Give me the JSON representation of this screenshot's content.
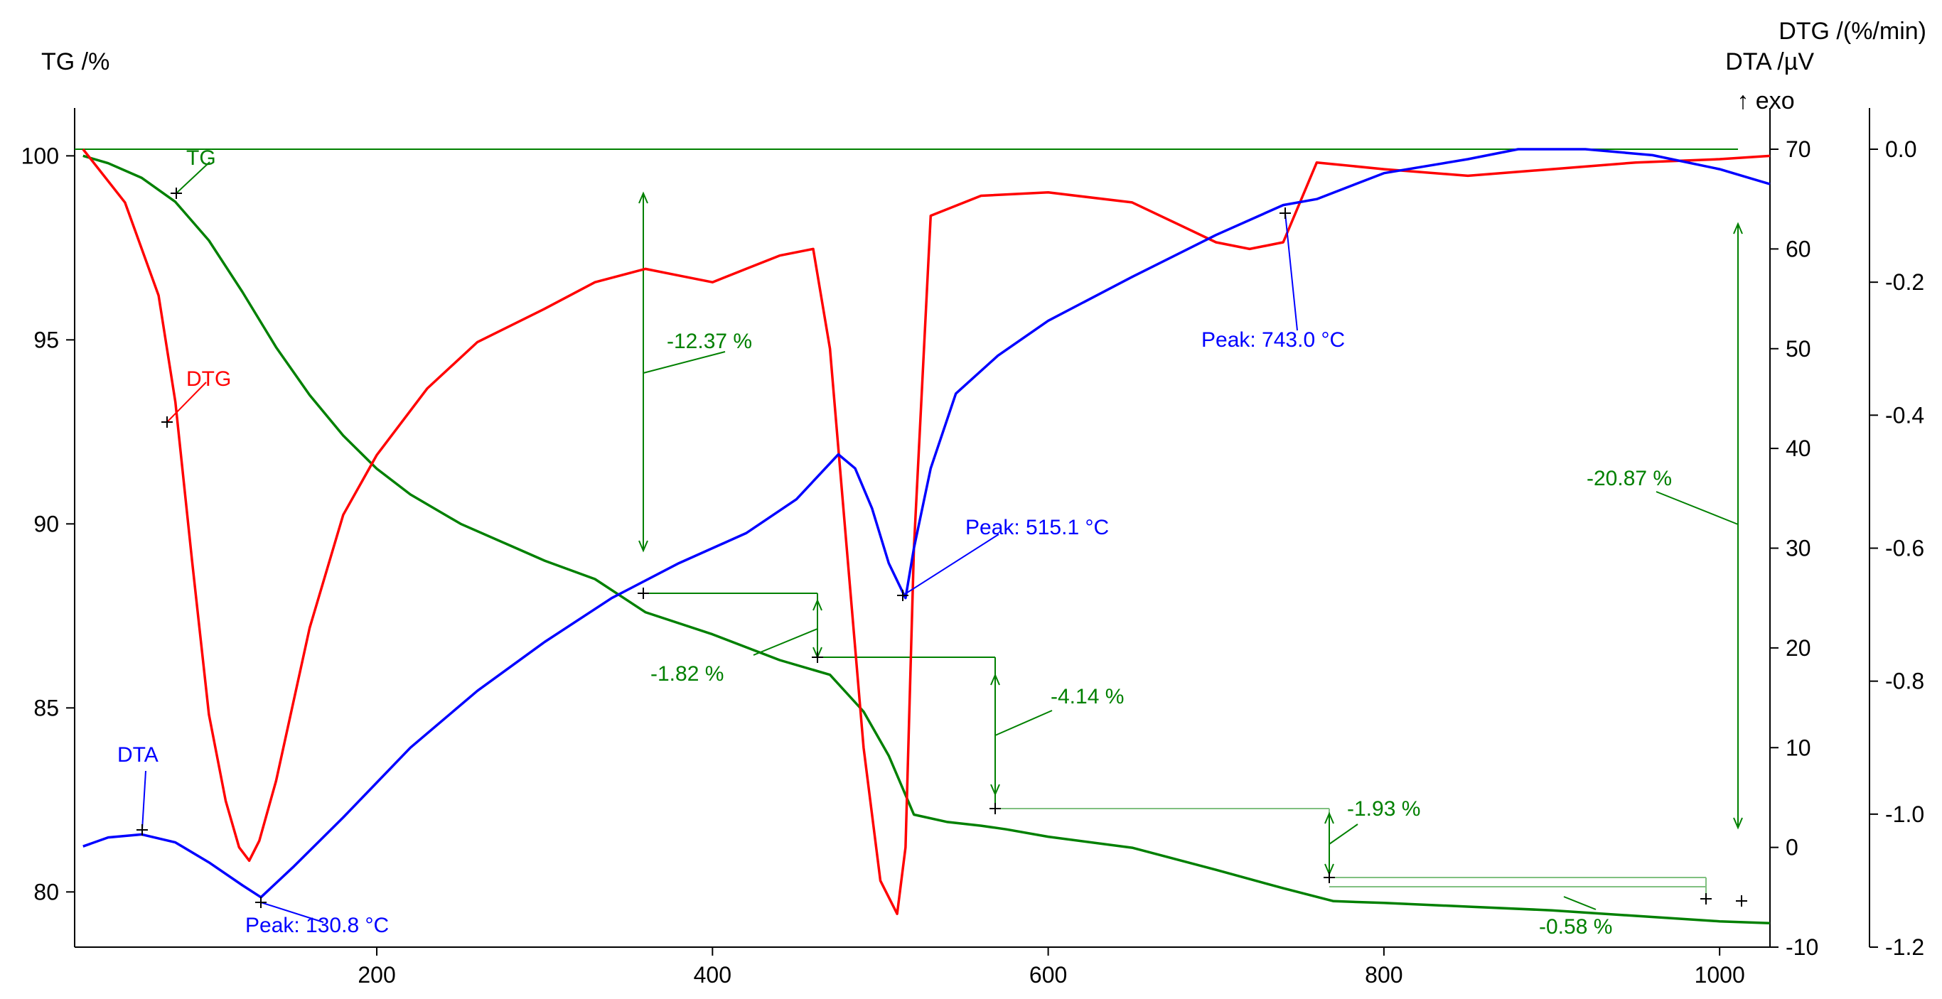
{
  "chart_data": {
    "type": "line",
    "axes": {
      "x": {
        "min": 20,
        "max": 1030,
        "ticks": [
          "200",
          "400",
          "600",
          "800",
          "1000"
        ],
        "tick_values": [
          200,
          400,
          600,
          800,
          1000
        ]
      },
      "tg": {
        "title": "TG /%",
        "min": 78.5,
        "max": 101.3,
        "ticks": [
          "80",
          "85",
          "90",
          "95",
          "100"
        ],
        "tick_values": [
          80,
          85,
          90,
          95,
          100
        ]
      },
      "dta": {
        "title": "DTA /µV",
        "exo_label": "↑ exo",
        "min": -10,
        "max": 70,
        "ticks": [
          "-10",
          "0",
          "10",
          "20",
          "30",
          "40",
          "50",
          "60",
          "70"
        ],
        "tick_values": [
          -10,
          0,
          10,
          20,
          30,
          40,
          50,
          60,
          70
        ]
      },
      "dtg": {
        "title": "DTG /(%/min)",
        "min": -1.2,
        "max": 0.0,
        "ticks": [
          "-1.2",
          "-1.0",
          "-0.8",
          "-0.6",
          "-0.4",
          "-0.2",
          "0.0"
        ],
        "tick_values": [
          -1.2,
          -1.0,
          -0.8,
          -0.6,
          -0.4,
          -0.2,
          0.0
        ]
      }
    },
    "colors": {
      "tg": "#008000",
      "dtg": "#ff0000",
      "dta": "#0000ff",
      "tg_light": "#80c080"
    },
    "series": [
      {
        "name": "TG",
        "axis": "tg",
        "color": "#008000",
        "x": [
          25,
          40,
          60,
          80,
          100,
          120,
          140,
          160,
          180,
          200,
          220,
          250,
          280,
          300,
          330,
          360,
          400,
          440,
          470,
          490,
          505,
          520,
          540,
          560,
          575,
          600,
          650,
          700,
          740,
          770,
          800,
          850,
          900,
          950,
          1000,
          1030
        ],
        "y": [
          100,
          99.8,
          99.4,
          98.75,
          97.7,
          96.3,
          94.8,
          93.5,
          92.4,
          91.5,
          90.8,
          90.0,
          89.4,
          89.0,
          88.5,
          87.6,
          87.0,
          86.3,
          85.9,
          84.9,
          83.7,
          82.1,
          81.9,
          81.8,
          81.7,
          81.5,
          81.2,
          80.6,
          80.1,
          79.75,
          79.7,
          79.6,
          79.5,
          79.35,
          79.2,
          79.15
        ]
      },
      {
        "name": "DTG",
        "axis": "dtg",
        "color": "#ff0000",
        "x": [
          25,
          50,
          70,
          80,
          90,
          100,
          110,
          118,
          124,
          130,
          140,
          160,
          180,
          200,
          230,
          260,
          300,
          330,
          360,
          380,
          400,
          420,
          440,
          460,
          470,
          480,
          490,
          500,
          510,
          515,
          520,
          530,
          560,
          600,
          650,
          700,
          720,
          740,
          760,
          800,
          850,
          900,
          950,
          1000,
          1030
        ],
        "y": [
          0.0,
          -0.08,
          -0.22,
          -0.38,
          -0.62,
          -0.85,
          -0.98,
          -1.05,
          -1.07,
          -1.04,
          -0.95,
          -0.72,
          -0.55,
          -0.46,
          -0.36,
          -0.29,
          -0.24,
          -0.2,
          -0.18,
          -0.19,
          -0.2,
          -0.18,
          -0.16,
          -0.15,
          -0.3,
          -0.6,
          -0.9,
          -1.1,
          -1.15,
          -1.05,
          -0.6,
          -0.1,
          -0.07,
          -0.065,
          -0.08,
          -0.14,
          -0.15,
          -0.14,
          -0.02,
          -0.03,
          -0.04,
          -0.03,
          -0.02,
          -0.015,
          -0.01
        ]
      },
      {
        "name": "DTA",
        "axis": "dta",
        "color": "#0000ff",
        "x": [
          25,
          40,
          60,
          80,
          100,
          120,
          131,
          150,
          180,
          220,
          260,
          300,
          340,
          380,
          420,
          450,
          475,
          485,
          495,
          505,
          515,
          520,
          530,
          545,
          570,
          600,
          650,
          700,
          740,
          760,
          800,
          850,
          880,
          920,
          960,
          1000,
          1030
        ],
        "y": [
          0.1,
          1.0,
          1.3,
          0.5,
          -1.5,
          -3.8,
          -5.0,
          -2.0,
          3.0,
          10.0,
          15.7,
          20.6,
          25.0,
          28.5,
          31.5,
          34.9,
          39.4,
          38.0,
          34.0,
          28.5,
          25.0,
          30.0,
          38.0,
          45.5,
          49.3,
          52.8,
          57.2,
          61.4,
          64.4,
          65.0,
          67.6,
          69.0,
          70.0,
          70.0,
          69.4,
          68.0,
          66.5
        ]
      }
    ],
    "labels": [
      {
        "id": "tg",
        "text": "TG",
        "color": "#008000"
      },
      {
        "id": "dtg",
        "text": "DTG",
        "color": "#ff0000"
      },
      {
        "id": "dta",
        "text": "DTA",
        "color": "#0000ff"
      },
      {
        "id": "peak1",
        "text": "Peak: 130.8 °C",
        "color": "#0000ff"
      },
      {
        "id": "peak2",
        "text": "Peak: 515.1 °C",
        "color": "#0000ff"
      },
      {
        "id": "peak3",
        "text": "Peak: 743.0 °C",
        "color": "#0000ff"
      },
      {
        "id": "m1",
        "text": "-12.37 %",
        "color": "#008000"
      },
      {
        "id": "m2",
        "text": "-1.82 %",
        "color": "#008000"
      },
      {
        "id": "m3",
        "text": "-4.14 %",
        "color": "#008000"
      },
      {
        "id": "m4",
        "text": "-1.93 %",
        "color": "#008000"
      },
      {
        "id": "m5",
        "text": "-0.58 %",
        "color": "#008000"
      },
      {
        "id": "m6",
        "text": "-20.87 %",
        "color": "#008000"
      }
    ]
  }
}
